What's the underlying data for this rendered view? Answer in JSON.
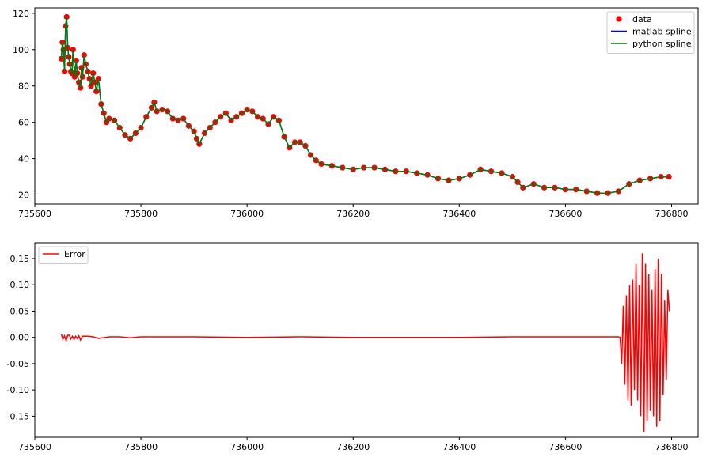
{
  "chart_data": [
    {
      "type": "line",
      "title": "",
      "xlabel": "",
      "ylabel": "",
      "xlim": [
        735600,
        736850
      ],
      "ylim": [
        15,
        123
      ],
      "grid": false,
      "legend_position": "top-right",
      "x_ticks": [
        735600,
        735800,
        736000,
        736200,
        736400,
        736600,
        736800
      ],
      "y_ticks": [
        20,
        40,
        60,
        80,
        100,
        120
      ],
      "series": [
        {
          "name": "data",
          "style": "markers",
          "color": "#ff0000",
          "x": [
            735650,
            735652,
            735654,
            735656,
            735658,
            735660,
            735662,
            735664,
            735666,
            735668,
            735670,
            735672,
            735675,
            735678,
            735680,
            735683,
            735686,
            735688,
            735690,
            735693,
            735696,
            735700,
            735703,
            735706,
            735710,
            735713,
            735716,
            735720,
            735725,
            735730,
            735735,
            735740,
            735750,
            735760,
            735770,
            735780,
            735790,
            735800,
            735810,
            735820,
            735825,
            735830,
            735840,
            735850,
            735860,
            735870,
            735880,
            735890,
            735900,
            735905,
            735910,
            735920,
            735930,
            735940,
            735950,
            735960,
            735970,
            735980,
            735990,
            736000,
            736010,
            736020,
            736030,
            736040,
            736050,
            736060,
            736070,
            736080,
            736090,
            736100,
            736110,
            736120,
            736130,
            736140,
            736160,
            736180,
            736200,
            736220,
            736240,
            736260,
            736280,
            736300,
            736320,
            736340,
            736360,
            736380,
            736400,
            736420,
            736440,
            736460,
            736480,
            736500,
            736510,
            736520,
            736540,
            736560,
            736580,
            736600,
            736620,
            736640,
            736660,
            736680,
            736700,
            736720,
            736740,
            736760,
            736780,
            736795
          ],
          "y": [
            95,
            104,
            100,
            88,
            113,
            118,
            101,
            96,
            92,
            88,
            87,
            100,
            85,
            94,
            87,
            82,
            79,
            90,
            85,
            97,
            92,
            88,
            84,
            80,
            87,
            82,
            77,
            84,
            70,
            65,
            60,
            62,
            61,
            57,
            53,
            51,
            54,
            57,
            63,
            68,
            71,
            66,
            67,
            66,
            62,
            61,
            62,
            58,
            55,
            51,
            48,
            54,
            57,
            60,
            63,
            65,
            61,
            63,
            65,
            67,
            66,
            63,
            62,
            59,
            63,
            61,
            52,
            46,
            49,
            49,
            47,
            42,
            39,
            37,
            36,
            35,
            34,
            35,
            35,
            34,
            33,
            33,
            32,
            31,
            29,
            28,
            29,
            31,
            34,
            33,
            32,
            30,
            27,
            24,
            26,
            24,
            24,
            23,
            23,
            22,
            21,
            21,
            22,
            26,
            28,
            29,
            30,
            30
          ]
        },
        {
          "name": "matlab spline",
          "style": "line",
          "color": "#0000ff",
          "x": [
            735650,
            735652,
            735654,
            735656,
            735658,
            735660,
            735662,
            735664,
            735666,
            735668,
            735670,
            735672,
            735675,
            735678,
            735680,
            735683,
            735686,
            735688,
            735690,
            735693,
            735696,
            735700,
            735703,
            735706,
            735710,
            735713,
            735716,
            735720,
            735725,
            735730,
            735735,
            735740,
            735750,
            735760,
            735770,
            735780,
            735790,
            735800,
            735810,
            735820,
            735825,
            735830,
            735840,
            735850,
            735860,
            735870,
            735880,
            735890,
            735900,
            735905,
            735910,
            735920,
            735930,
            735940,
            735950,
            735960,
            735970,
            735980,
            735990,
            736000,
            736010,
            736020,
            736030,
            736040,
            736050,
            736060,
            736070,
            736080,
            736090,
            736100,
            736110,
            736120,
            736130,
            736140,
            736160,
            736180,
            736200,
            736220,
            736240,
            736260,
            736280,
            736300,
            736320,
            736340,
            736360,
            736380,
            736400,
            736420,
            736440,
            736460,
            736480,
            736500,
            736510,
            736520,
            736540,
            736560,
            736580,
            736600,
            736620,
            736640,
            736660,
            736680,
            736700,
            736720,
            736740,
            736760,
            736780,
            736795
          ],
          "y": [
            95,
            104,
            100,
            88,
            113,
            118,
            101,
            96,
            92,
            88,
            87,
            100,
            85,
            94,
            87,
            82,
            79,
            90,
            85,
            97,
            92,
            88,
            84,
            80,
            87,
            82,
            77,
            84,
            70,
            65,
            60,
            62,
            61,
            57,
            53,
            51,
            54,
            57,
            63,
            68,
            71,
            66,
            67,
            66,
            62,
            61,
            62,
            58,
            55,
            51,
            48,
            54,
            57,
            60,
            63,
            65,
            61,
            63,
            65,
            67,
            66,
            63,
            62,
            59,
            63,
            61,
            52,
            46,
            49,
            49,
            47,
            42,
            39,
            37,
            36,
            35,
            34,
            35,
            35,
            34,
            33,
            33,
            32,
            31,
            29,
            28,
            29,
            31,
            34,
            33,
            32,
            30,
            27,
            24,
            26,
            24,
            24,
            23,
            23,
            22,
            21,
            21,
            22,
            26,
            28,
            29,
            30,
            30
          ]
        },
        {
          "name": "python spline",
          "style": "line",
          "color": "#008000",
          "x": [
            735650,
            735652,
            735654,
            735656,
            735658,
            735660,
            735662,
            735664,
            735666,
            735668,
            735670,
            735672,
            735675,
            735678,
            735680,
            735683,
            735686,
            735688,
            735690,
            735693,
            735696,
            735700,
            735703,
            735706,
            735710,
            735713,
            735716,
            735720,
            735725,
            735730,
            735735,
            735740,
            735750,
            735760,
            735770,
            735780,
            735790,
            735800,
            735810,
            735820,
            735825,
            735830,
            735840,
            735850,
            735860,
            735870,
            735880,
            735890,
            735900,
            735905,
            735910,
            735920,
            735930,
            735940,
            735950,
            735960,
            735970,
            735980,
            735990,
            736000,
            736010,
            736020,
            736030,
            736040,
            736050,
            736060,
            736070,
            736080,
            736090,
            736100,
            736110,
            736120,
            736130,
            736140,
            736160,
            736180,
            736200,
            736220,
            736240,
            736260,
            736280,
            736300,
            736320,
            736340,
            736360,
            736380,
            736400,
            736420,
            736440,
            736460,
            736480,
            736500,
            736510,
            736520,
            736540,
            736560,
            736580,
            736600,
            736620,
            736640,
            736660,
            736680,
            736700,
            736720,
            736740,
            736760,
            736780,
            736795
          ],
          "y": [
            95,
            104,
            100,
            88,
            113,
            118,
            101,
            96,
            92,
            88,
            87,
            100,
            85,
            94,
            87,
            82,
            79,
            90,
            85,
            97,
            92,
            88,
            84,
            80,
            87,
            82,
            77,
            84,
            70,
            65,
            60,
            62,
            61,
            57,
            53,
            51,
            54,
            57,
            63,
            68,
            71,
            66,
            67,
            66,
            62,
            61,
            62,
            58,
            55,
            51,
            48,
            54,
            57,
            60,
            63,
            65,
            61,
            63,
            65,
            67,
            66,
            63,
            62,
            59,
            63,
            61,
            52,
            46,
            49,
            49,
            47,
            42,
            39,
            37,
            36,
            35,
            34,
            35,
            35,
            34,
            33,
            33,
            32,
            31,
            29,
            28,
            29,
            31,
            34,
            33,
            32,
            30,
            27,
            24,
            26,
            24,
            24,
            23,
            23,
            22,
            21,
            21,
            22,
            26,
            28,
            29,
            30,
            30
          ]
        }
      ]
    },
    {
      "type": "line",
      "title": "",
      "xlabel": "",
      "ylabel": "",
      "xlim": [
        735600,
        736850
      ],
      "ylim": [
        -0.19,
        0.18
      ],
      "grid": false,
      "legend_position": "top-left",
      "x_ticks": [
        735600,
        735800,
        736000,
        736200,
        736400,
        736600,
        736800
      ],
      "y_ticks": [
        -0.15,
        -0.1,
        -0.05,
        0.0,
        0.05,
        0.1,
        0.15
      ],
      "series": [
        {
          "name": "Error",
          "style": "line",
          "color": "#ff0000",
          "x": [
            735650,
            735653,
            735656,
            735659,
            735662,
            735665,
            735668,
            735671,
            735674,
            735677,
            735680,
            735683,
            735686,
            735690,
            735700,
            735710,
            735720,
            735740,
            735760,
            735780,
            735800,
            735900,
            736000,
            736100,
            736200,
            736300,
            736400,
            736500,
            736600,
            736700,
            736703,
            736706,
            736709,
            736712,
            736715,
            736718,
            736721,
            736724,
            736727,
            736730,
            736733,
            736736,
            736739,
            736742,
            736745,
            736748,
            736751,
            736754,
            736757,
            736760,
            736763,
            736766,
            736769,
            736772,
            736775,
            736778,
            736781,
            736784,
            736787,
            736790,
            736793,
            736796
          ],
          "y": [
            0.006,
            -0.004,
            0.003,
            -0.006,
            0.004,
            0.004,
            -0.003,
            0.002,
            -0.004,
            0.002,
            -0.002,
            0.003,
            -0.005,
            0.002,
            0.002,
            0.001,
            -0.002,
            0.001,
            0.001,
            -0.001,
            0.001,
            0.001,
            0.0,
            0.001,
            0.0,
            0.0,
            0.0,
            0.001,
            0.001,
            0.001,
            0.0,
            -0.05,
            0.06,
            -0.09,
            0.08,
            -0.12,
            0.1,
            -0.13,
            0.11,
            -0.1,
            0.14,
            -0.12,
            0.1,
            -0.15,
            0.16,
            -0.18,
            0.14,
            -0.16,
            0.12,
            -0.14,
            0.09,
            -0.15,
            0.13,
            -0.17,
            0.15,
            -0.16,
            0.12,
            -0.11,
            0.07,
            -0.08,
            0.09,
            0.05
          ]
        }
      ]
    }
  ]
}
